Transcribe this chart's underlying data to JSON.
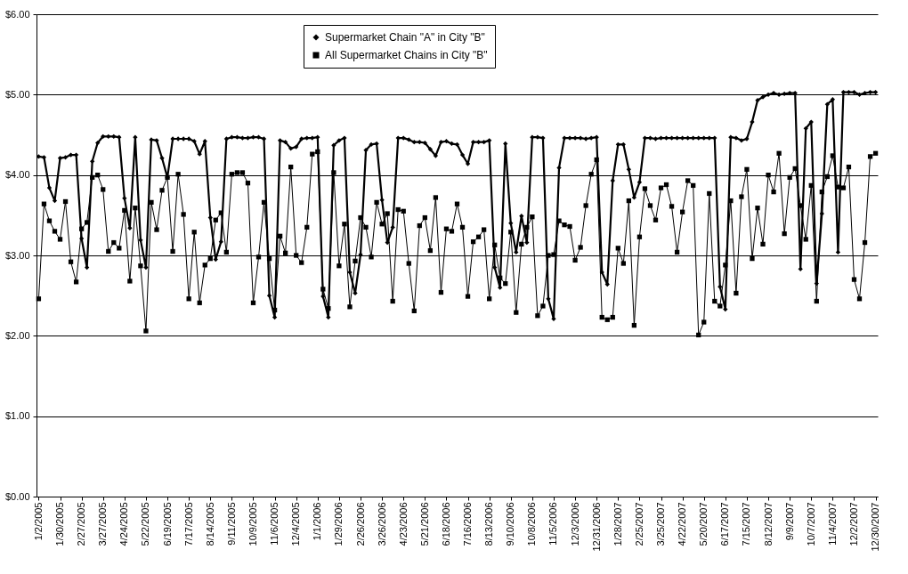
{
  "chart_data": {
    "type": "line",
    "categories": [
      "1/2/2005",
      null,
      null,
      null,
      "1/30/2005",
      null,
      null,
      null,
      "2/27/2005",
      null,
      null,
      null,
      "3/27/2005",
      null,
      null,
      null,
      "4/24/2005",
      null,
      null,
      null,
      "5/22/2005",
      null,
      null,
      null,
      "6/19/2005",
      null,
      null,
      null,
      "7/17/2005",
      null,
      null,
      null,
      "8/14/2005",
      null,
      null,
      null,
      "9/11/2005",
      null,
      null,
      null,
      "10/9/2005",
      null,
      null,
      null,
      "11/6/2005",
      null,
      null,
      null,
      "12/4/2005",
      null,
      null,
      null,
      "1/1/2006",
      null,
      null,
      null,
      "1/29/2006",
      null,
      null,
      null,
      "2/26/2006",
      null,
      null,
      null,
      "3/26/2006",
      null,
      null,
      null,
      "4/23/2006",
      null,
      null,
      null,
      "5/21/2006",
      null,
      null,
      null,
      "6/18/2006",
      null,
      null,
      null,
      "7/16/2006",
      null,
      null,
      null,
      "8/13/2006",
      null,
      null,
      null,
      "9/10/2006",
      null,
      null,
      null,
      "10/8/2006",
      null,
      null,
      null,
      "11/5/2006",
      null,
      null,
      null,
      "12/3/2006",
      null,
      null,
      null,
      "12/31/2006",
      null,
      null,
      null,
      "1/28/2007",
      null,
      null,
      null,
      "2/25/2007",
      null,
      null,
      null,
      "3/25/2007",
      null,
      null,
      null,
      "4/22/2007",
      null,
      null,
      null,
      "5/20/2007",
      null,
      null,
      null,
      "6/17/2007",
      null,
      null,
      null,
      "7/15/2007",
      null,
      null,
      null,
      "8/12/2007",
      null,
      null,
      null,
      "9/9/2007",
      null,
      null,
      null,
      "10/7/2007",
      null,
      null,
      null,
      "11/4/2007",
      null,
      null,
      null,
      "12/2/2007",
      null,
      null,
      null,
      "12/30/2007"
    ],
    "series": [
      {
        "name": "Supermarket Chain \"A\" in City \"B\"",
        "color": "#000000",
        "marker": "diamond",
        "values": [
          4.23,
          4.22,
          3.84,
          3.68,
          4.21,
          4.22,
          4.25,
          4.25,
          3.21,
          2.85,
          4.17,
          4.4,
          4.48,
          4.48,
          4.48,
          4.47,
          3.71,
          3.34,
          4.47,
          3.19,
          2.85,
          4.44,
          4.43,
          4.21,
          3.97,
          4.45,
          4.45,
          4.45,
          4.45,
          4.42,
          4.26,
          4.42,
          3.47,
          2.95,
          3.17,
          4.45,
          4.47,
          4.47,
          4.46,
          4.46,
          4.47,
          4.47,
          4.45,
          2.5,
          2.23,
          4.43,
          4.41,
          4.33,
          4.35,
          4.45,
          4.46,
          4.46,
          4.47,
          2.49,
          2.23,
          4.37,
          4.43,
          4.46,
          2.79,
          2.53,
          3.01,
          4.31,
          4.38,
          4.39,
          3.69,
          3.16,
          3.35,
          4.46,
          4.46,
          4.44,
          4.41,
          4.41,
          4.4,
          4.32,
          4.24,
          4.41,
          4.42,
          4.39,
          4.38,
          4.25,
          4.14,
          4.41,
          4.41,
          4.41,
          4.43,
          2.85,
          2.6,
          4.39,
          3.4,
          3.04,
          3.49,
          3.16,
          4.47,
          4.47,
          4.46,
          2.46,
          2.21,
          4.09,
          4.46,
          4.46,
          4.46,
          4.46,
          4.45,
          4.46,
          4.47,
          2.79,
          2.64,
          3.93,
          4.38,
          4.38,
          4.07,
          3.72,
          3.91,
          4.46,
          4.46,
          4.45,
          4.46,
          4.46,
          4.46,
          4.46,
          4.46,
          4.46,
          4.46,
          4.46,
          4.46,
          4.46,
          4.46,
          2.61,
          2.33,
          4.47,
          4.46,
          4.43,
          4.45,
          4.66,
          4.93,
          4.97,
          5.0,
          5.02,
          5.0,
          5.01,
          5.02,
          5.02,
          2.83,
          4.58,
          4.66,
          2.65,
          3.52,
          4.88,
          4.94,
          3.04,
          5.03,
          5.03,
          5.03,
          5.0,
          5.02,
          5.03,
          5.03
        ]
      },
      {
        "name": "All Supermarket Chains in City \"B\"",
        "color": "#000000",
        "marker": "square",
        "values": [
          2.46,
          3.64,
          3.43,
          3.3,
          3.2,
          3.67,
          2.92,
          2.67,
          3.33,
          3.41,
          3.97,
          4.0,
          3.82,
          3.05,
          3.16,
          3.09,
          3.56,
          2.68,
          3.59,
          2.87,
          2.06,
          3.66,
          3.32,
          3.81,
          3.97,
          3.05,
          4.01,
          3.51,
          2.46,
          3.29,
          2.41,
          2.88,
          2.96,
          3.44,
          3.53,
          3.04,
          4.01,
          4.03,
          4.03,
          3.9,
          2.41,
          2.98,
          3.66,
          2.96,
          2.32,
          3.24,
          3.03,
          4.1,
          3.0,
          2.91,
          3.35,
          4.26,
          4.29,
          2.58,
          2.34,
          4.03,
          2.87,
          3.39,
          2.36,
          2.93,
          3.47,
          3.35,
          2.98,
          3.66,
          3.39,
          3.52,
          2.43,
          3.57,
          3.55,
          2.9,
          2.31,
          3.37,
          3.47,
          3.06,
          3.72,
          2.54,
          3.33,
          3.3,
          3.64,
          3.35,
          2.49,
          3.17,
          3.23,
          3.32,
          2.46,
          3.13,
          2.72,
          2.65,
          3.29,
          2.29,
          3.14,
          3.35,
          3.48,
          2.25,
          2.37,
          3.0,
          3.01,
          3.43,
          3.38,
          3.36,
          2.94,
          3.1,
          3.62,
          4.01,
          4.19,
          2.23,
          2.2,
          2.23,
          3.09,
          2.9,
          3.68,
          2.13,
          3.23,
          3.83,
          3.62,
          3.44,
          3.84,
          3.88,
          3.61,
          3.04,
          3.54,
          3.93,
          3.87,
          2.01,
          2.17,
          3.77,
          2.43,
          2.37,
          2.88,
          3.68,
          2.53,
          3.73,
          4.07,
          2.96,
          3.59,
          3.14,
          4.0,
          3.79,
          4.27,
          3.27,
          3.97,
          4.08,
          3.62,
          3.2,
          3.87,
          2.43,
          3.79,
          3.98,
          4.24,
          3.85,
          3.84,
          4.1,
          2.7,
          2.46,
          3.16,
          4.23,
          4.27
        ]
      }
    ],
    "ylim": [
      0,
      6
    ],
    "yticks": [
      {
        "value": 0,
        "label": "$0.00"
      },
      {
        "value": 1,
        "label": "$1.00"
      },
      {
        "value": 2,
        "label": "$2.00"
      },
      {
        "value": 3,
        "label": "$3.00"
      },
      {
        "value": 4,
        "label": "$4.00"
      },
      {
        "value": 5,
        "label": "$5.00"
      },
      {
        "value": 6,
        "label": "$6.00"
      }
    ],
    "grid": "y",
    "legend": "top"
  }
}
